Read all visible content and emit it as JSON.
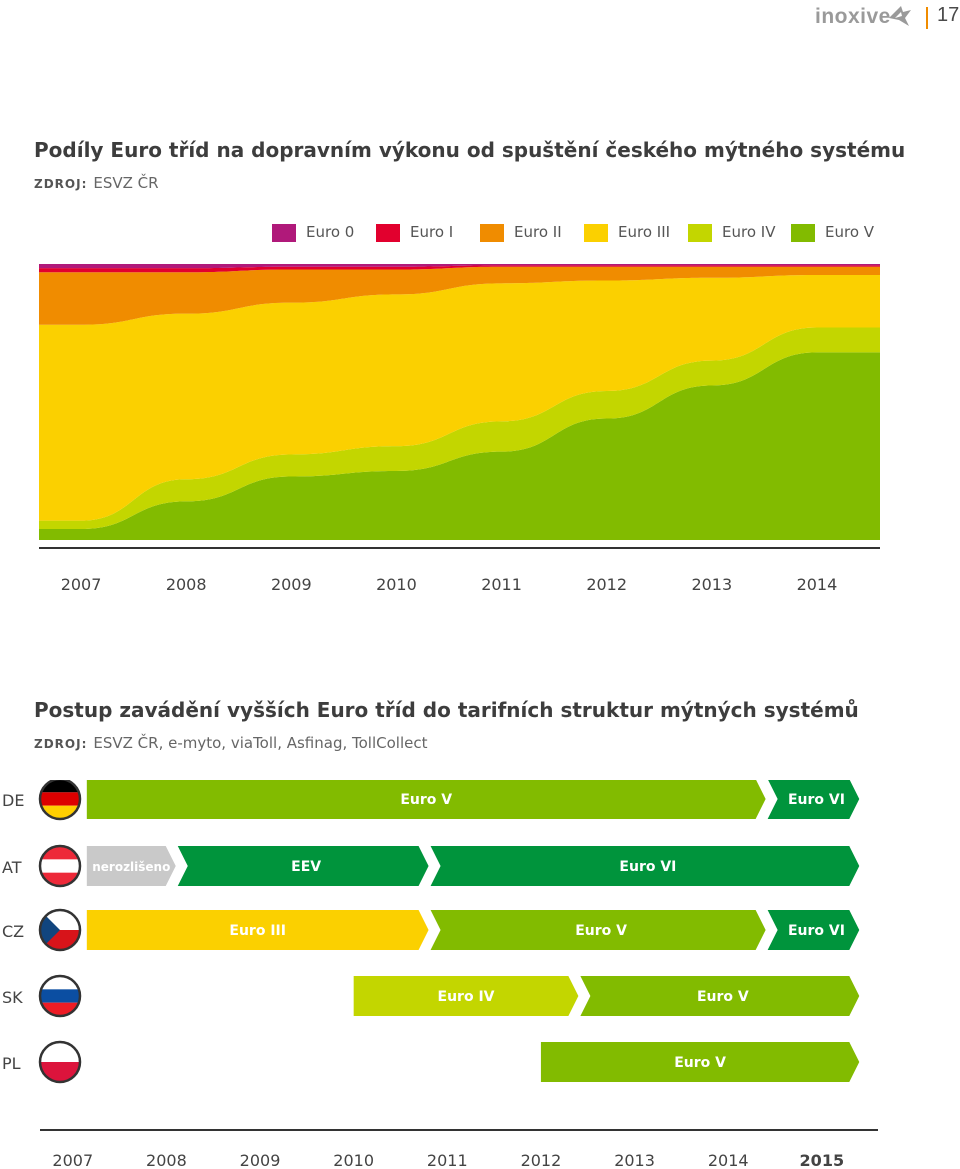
{
  "header": {
    "logo_text": "inoxive",
    "page_number": "17",
    "accent_color": "#f08c00"
  },
  "chart1": {
    "title": "Podíly Euro tříd na dopravním výkonu od spuštění českého mýtného systému",
    "source_label": "ZDROJ:",
    "source_text": "ESVZ ČR"
  },
  "chart2": {
    "title": "Postup zavádění vyšších Euro tříd do tarifních struktur mýtných systémů",
    "source_label": "ZDROJ:",
    "source_text": "ESVZ ČR, e-myto, viaToll, Asfinag, TollCollect"
  },
  "chart_data": [
    {
      "type": "area",
      "stacked": true,
      "percent": true,
      "x": [
        "2007",
        "2008",
        "2009",
        "2010",
        "2011",
        "2012",
        "2013",
        "2014"
      ],
      "x_positions": [
        2007,
        2008,
        2009,
        2010,
        2011,
        2012,
        2013,
        2014
      ],
      "xlim": [
        2006.6,
        2014.6
      ],
      "ylim": [
        0,
        100
      ],
      "legend_position": "top-right",
      "series": [
        {
          "name": "Euro V",
          "color": "#82bb00",
          "values": [
            4,
            14,
            23,
            25,
            32,
            44,
            56,
            68
          ]
        },
        {
          "name": "Euro IV",
          "color": "#c3d600",
          "values": [
            3,
            8,
            8,
            9,
            11,
            10,
            9,
            9
          ]
        },
        {
          "name": "Euro III",
          "color": "#fbd000",
          "values": [
            71,
            60,
            55,
            55,
            50,
            40,
            30,
            19
          ]
        },
        {
          "name": "Euro II",
          "color": "#f08c00",
          "values": [
            19,
            15,
            12,
            9,
            6,
            5,
            4,
            3
          ]
        },
        {
          "name": "Euro I",
          "color": "#e2002e",
          "values": [
            1.5,
            1.5,
            1,
            1,
            0.5,
            0.5,
            0.5,
            0.5
          ]
        },
        {
          "name": "Euro 0",
          "color": "#b0197a",
          "values": [
            1.5,
            1.5,
            1,
            1,
            0.5,
            0.5,
            0.5,
            0.5
          ]
        }
      ],
      "legend_order": [
        "Euro 0",
        "Euro I",
        "Euro II",
        "Euro III",
        "Euro IV",
        "Euro V"
      ]
    },
    {
      "type": "timeline",
      "xlim": [
        2006.65,
        2015.6
      ],
      "ticks": [
        "2007",
        "2008",
        "2009",
        "2010",
        "2011",
        "2012",
        "2013",
        "2014",
        "2015"
      ],
      "tick_positions": [
        2007,
        2008,
        2009,
        2010,
        2011,
        2012,
        2013,
        2014,
        2015
      ],
      "highlight_tick": "2015",
      "rows": [
        {
          "country": "DE",
          "flag": "de",
          "segments": [
            {
              "label": "Euro V",
              "start": 2007.15,
              "end": 2014.4,
              "color": "#82bb00"
            },
            {
              "label": "Euro VI",
              "start": 2014.4,
              "end": 2015.4,
              "color": "#00943c"
            }
          ]
        },
        {
          "country": "AT",
          "flag": "at",
          "segments": [
            {
              "label": "nerozlišeno",
              "start": 2007.15,
              "end": 2008.1,
              "color": "#c9c9c9"
            },
            {
              "label": "EEV",
              "start": 2008.1,
              "end": 2010.8,
              "color": "#00943c"
            },
            {
              "label": "Euro VI",
              "start": 2010.8,
              "end": 2015.4,
              "color": "#00943c"
            }
          ]
        },
        {
          "country": "CZ",
          "flag": "cz",
          "segments": [
            {
              "label": "Euro III",
              "start": 2007.15,
              "end": 2010.8,
              "color": "#fbd000"
            },
            {
              "label": "Euro V",
              "start": 2010.8,
              "end": 2014.4,
              "color": "#82bb00"
            },
            {
              "label": "Euro VI",
              "start": 2014.4,
              "end": 2015.4,
              "color": "#00943c"
            }
          ]
        },
        {
          "country": "SK",
          "flag": "sk",
          "segments": [
            {
              "label": "Euro IV",
              "start": 2010.0,
              "end": 2012.4,
              "color": "#c3d600"
            },
            {
              "label": "Euro V",
              "start": 2012.4,
              "end": 2015.4,
              "color": "#82bb00"
            }
          ]
        },
        {
          "country": "PL",
          "flag": "pl",
          "segments": [
            {
              "label": "Euro V",
              "start": 2012.0,
              "end": 2015.4,
              "color": "#82bb00"
            }
          ]
        }
      ]
    }
  ]
}
